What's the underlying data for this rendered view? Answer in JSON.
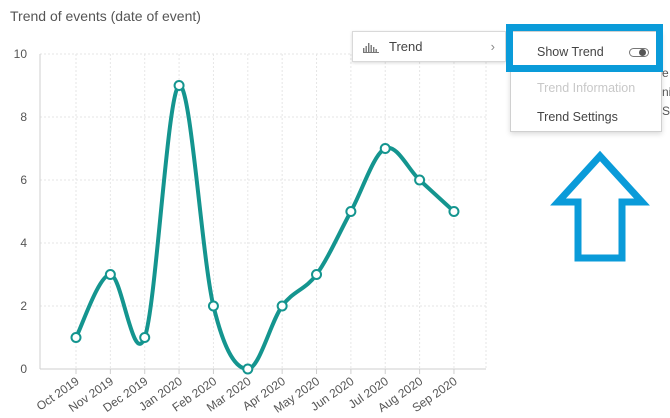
{
  "chart_data": {
    "type": "line",
    "title": "Trend of events (date of event)",
    "xlabel": "",
    "ylabel": "",
    "categories": [
      "Oct 2019",
      "Nov 2019",
      "Dec 2019",
      "Jan 2020",
      "Feb 2020",
      "Mar 2020",
      "Apr 2020",
      "May 2020",
      "Jun 2020",
      "Jul 2020",
      "Aug 2020",
      "Sep 2020"
    ],
    "series": [
      {
        "values": [
          1,
          3,
          1,
          9,
          2,
          0,
          2,
          3,
          5,
          7,
          6,
          5
        ]
      }
    ],
    "ylim": [
      0,
      10
    ],
    "yticks": [
      0,
      2,
      4,
      6,
      8,
      10
    ],
    "grid": true,
    "legend": "none",
    "line_color": "#14958f"
  },
  "context_menu": {
    "trend_label": "Trend",
    "trend_icon": "trend-chart-icon",
    "chevron": "›",
    "submenu": {
      "show_trend": "Show Trend",
      "trend_information": "Trend Information",
      "trend_settings": "Trend Settings"
    }
  },
  "colors": {
    "highlight": "#0a9bd9",
    "arrow": "#0a9bd9"
  }
}
